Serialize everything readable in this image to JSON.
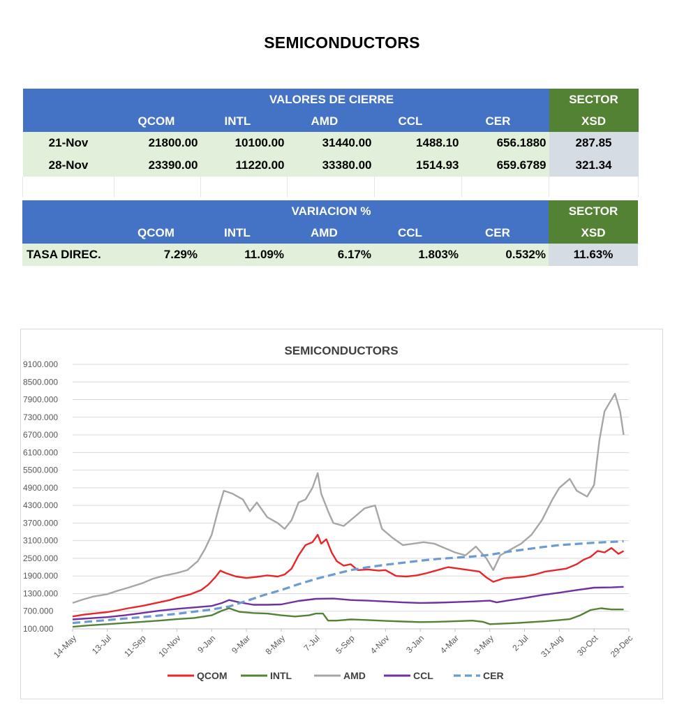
{
  "title": "SEMICONDUCTORS",
  "table_cierre": {
    "section_label": "VALORES DE CIERRE",
    "sector_label": "SECTOR",
    "columns": [
      "QCOM",
      "INTL",
      "AMD",
      "CCL",
      "CER",
      "XSD"
    ],
    "rows": [
      {
        "date": "21-Nov",
        "values": [
          "21800.00",
          "10100.00",
          "31440.00",
          "1488.10",
          "656.1880",
          "287.85"
        ]
      },
      {
        "date": "28-Nov",
        "values": [
          "23390.00",
          "11220.00",
          "33380.00",
          "1514.93",
          "659.6789",
          "321.34"
        ]
      }
    ]
  },
  "table_variacion": {
    "section_label": "VARIACION %",
    "sector_label": "SECTOR",
    "columns": [
      "QCOM",
      "INTL",
      "AMD",
      "CCL",
      "CER",
      "XSD"
    ],
    "row_label": "TASA DIREC.",
    "values": [
      "7.29%",
      "11.09%",
      "6.17%",
      "1.803%",
      "0.532%",
      "11.63%"
    ]
  },
  "chart_data": {
    "type": "line",
    "title": "SEMICONDUCTORS",
    "xlabel": "",
    "ylabel": "",
    "ylim": [
      100,
      9100
    ],
    "yticks": [
      "9100.000",
      "8500.000",
      "7900.000",
      "7300.000",
      "6700.000",
      "6100.000",
      "5500.000",
      "4900.000",
      "4300.000",
      "3700.000",
      "3100.000",
      "2500.000",
      "1900.000",
      "1300.000",
      "700.000",
      "100.000"
    ],
    "categories": [
      "14-May",
      "13-Jul",
      "11-Sep",
      "10-Nov",
      "9-Jan",
      "9-Mar",
      "8-May",
      "7-Jul",
      "5-Sep",
      "4-Nov",
      "3-Jan",
      "4-Mar",
      "3-May",
      "2-Jul",
      "31-Aug",
      "30-Oct",
      "29-Dec"
    ],
    "legend_position": "bottom",
    "series": [
      {
        "name": "QCOM",
        "color": "#e8262a",
        "style": "solid",
        "points": [
          [
            0,
            520
          ],
          [
            0.3,
            580
          ],
          [
            0.6,
            620
          ],
          [
            1,
            670
          ],
          [
            1.3,
            730
          ],
          [
            1.6,
            800
          ],
          [
            2,
            880
          ],
          [
            2.4,
            980
          ],
          [
            2.8,
            1080
          ],
          [
            3,
            1160
          ],
          [
            3.4,
            1280
          ],
          [
            3.7,
            1420
          ],
          [
            3.9,
            1600
          ],
          [
            4.1,
            1850
          ],
          [
            4.25,
            2080
          ],
          [
            4.4,
            2000
          ],
          [
            4.7,
            1880
          ],
          [
            5,
            1830
          ],
          [
            5.3,
            1870
          ],
          [
            5.6,
            1920
          ],
          [
            5.9,
            1880
          ],
          [
            6.1,
            1950
          ],
          [
            6.3,
            2150
          ],
          [
            6.5,
            2600
          ],
          [
            6.7,
            2950
          ],
          [
            6.9,
            3050
          ],
          [
            7.05,
            3300
          ],
          [
            7.15,
            3000
          ],
          [
            7.3,
            3150
          ],
          [
            7.45,
            2700
          ],
          [
            7.6,
            2400
          ],
          [
            7.8,
            2250
          ],
          [
            8,
            2300
          ],
          [
            8.2,
            2100
          ],
          [
            8.5,
            2120
          ],
          [
            8.8,
            2080
          ],
          [
            9,
            2100
          ],
          [
            9.3,
            1900
          ],
          [
            9.6,
            1880
          ],
          [
            9.9,
            1920
          ],
          [
            10.2,
            2000
          ],
          [
            10.5,
            2100
          ],
          [
            10.8,
            2200
          ],
          [
            11.1,
            2150
          ],
          [
            11.4,
            2100
          ],
          [
            11.7,
            2050
          ],
          [
            11.9,
            1850
          ],
          [
            12.1,
            1700
          ],
          [
            12.4,
            1820
          ],
          [
            12.7,
            1850
          ],
          [
            13,
            1880
          ],
          [
            13.3,
            1950
          ],
          [
            13.6,
            2050
          ],
          [
            13.9,
            2100
          ],
          [
            14.2,
            2150
          ],
          [
            14.5,
            2300
          ],
          [
            14.7,
            2450
          ],
          [
            14.9,
            2550
          ],
          [
            15.1,
            2750
          ],
          [
            15.3,
            2700
          ],
          [
            15.5,
            2850
          ],
          [
            15.7,
            2650
          ],
          [
            15.85,
            2750
          ]
        ]
      },
      {
        "name": "INTL",
        "color": "#548235",
        "style": "solid",
        "points": [
          [
            0,
            170
          ],
          [
            0.5,
            220
          ],
          [
            1,
            260
          ],
          [
            1.5,
            300
          ],
          [
            2,
            340
          ],
          [
            2.5,
            380
          ],
          [
            3,
            430
          ],
          [
            3.5,
            470
          ],
          [
            4,
            560
          ],
          [
            4.3,
            720
          ],
          [
            4.5,
            800
          ],
          [
            4.8,
            680
          ],
          [
            5.2,
            640
          ],
          [
            5.6,
            620
          ],
          [
            6,
            560
          ],
          [
            6.4,
            520
          ],
          [
            6.8,
            560
          ],
          [
            7,
            620
          ],
          [
            7.2,
            620
          ],
          [
            7.35,
            380
          ],
          [
            7.6,
            380
          ],
          [
            8,
            420
          ],
          [
            8.5,
            400
          ],
          [
            9,
            370
          ],
          [
            9.5,
            350
          ],
          [
            10,
            330
          ],
          [
            10.5,
            340
          ],
          [
            11,
            360
          ],
          [
            11.5,
            380
          ],
          [
            11.8,
            340
          ],
          [
            12,
            260
          ],
          [
            12.4,
            280
          ],
          [
            12.8,
            300
          ],
          [
            13.2,
            330
          ],
          [
            13.6,
            360
          ],
          [
            14,
            400
          ],
          [
            14.3,
            430
          ],
          [
            14.6,
            560
          ],
          [
            14.9,
            740
          ],
          [
            15.2,
            800
          ],
          [
            15.5,
            760
          ],
          [
            15.85,
            760
          ]
        ]
      },
      {
        "name": "AMD",
        "color": "#a6a6a6",
        "style": "solid",
        "points": [
          [
            0,
            980
          ],
          [
            0.3,
            1100
          ],
          [
            0.6,
            1200
          ],
          [
            1,
            1280
          ],
          [
            1.3,
            1400
          ],
          [
            1.6,
            1500
          ],
          [
            2,
            1650
          ],
          [
            2.3,
            1800
          ],
          [
            2.6,
            1900
          ],
          [
            3,
            2000
          ],
          [
            3.3,
            2100
          ],
          [
            3.6,
            2400
          ],
          [
            3.8,
            2800
          ],
          [
            4,
            3300
          ],
          [
            4.2,
            4200
          ],
          [
            4.35,
            4800
          ],
          [
            4.6,
            4700
          ],
          [
            4.9,
            4500
          ],
          [
            5.1,
            4100
          ],
          [
            5.3,
            4400
          ],
          [
            5.6,
            3900
          ],
          [
            5.9,
            3700
          ],
          [
            6.1,
            3500
          ],
          [
            6.3,
            3800
          ],
          [
            6.5,
            4400
          ],
          [
            6.7,
            4500
          ],
          [
            6.9,
            4900
          ],
          [
            7.05,
            5400
          ],
          [
            7.15,
            4700
          ],
          [
            7.35,
            4100
          ],
          [
            7.5,
            3700
          ],
          [
            7.8,
            3600
          ],
          [
            8.1,
            3900
          ],
          [
            8.4,
            4200
          ],
          [
            8.7,
            4300
          ],
          [
            8.9,
            3500
          ],
          [
            9.2,
            3200
          ],
          [
            9.5,
            2950
          ],
          [
            9.8,
            3000
          ],
          [
            10.1,
            3050
          ],
          [
            10.4,
            3000
          ],
          [
            10.7,
            2850
          ],
          [
            11,
            2700
          ],
          [
            11.3,
            2600
          ],
          [
            11.6,
            2900
          ],
          [
            11.9,
            2500
          ],
          [
            12.1,
            2100
          ],
          [
            12.3,
            2600
          ],
          [
            12.6,
            2800
          ],
          [
            12.9,
            3000
          ],
          [
            13.2,
            3300
          ],
          [
            13.5,
            3800
          ],
          [
            13.8,
            4500
          ],
          [
            14,
            4900
          ],
          [
            14.3,
            5200
          ],
          [
            14.5,
            4800
          ],
          [
            14.8,
            4600
          ],
          [
            15,
            5000
          ],
          [
            15.15,
            6500
          ],
          [
            15.3,
            7500
          ],
          [
            15.45,
            7800
          ],
          [
            15.6,
            8100
          ],
          [
            15.75,
            7500
          ],
          [
            15.85,
            6700
          ]
        ]
      },
      {
        "name": "CCL",
        "color": "#7030a0",
        "style": "solid",
        "points": [
          [
            0,
            420
          ],
          [
            0.5,
            460
          ],
          [
            1,
            500
          ],
          [
            1.5,
            560
          ],
          [
            2,
            640
          ],
          [
            2.5,
            720
          ],
          [
            3,
            780
          ],
          [
            3.5,
            830
          ],
          [
            4,
            880
          ],
          [
            4.3,
            980
          ],
          [
            4.5,
            1080
          ],
          [
            4.8,
            1000
          ],
          [
            5.2,
            920
          ],
          [
            5.6,
            920
          ],
          [
            6,
            930
          ],
          [
            6.5,
            1050
          ],
          [
            7,
            1120
          ],
          [
            7.5,
            1130
          ],
          [
            8,
            1080
          ],
          [
            8.5,
            1060
          ],
          [
            9,
            1030
          ],
          [
            9.5,
            1000
          ],
          [
            10,
            980
          ],
          [
            10.5,
            990
          ],
          [
            11,
            1010
          ],
          [
            11.5,
            1030
          ],
          [
            12,
            1060
          ],
          [
            12.2,
            1000
          ],
          [
            12.5,
            1060
          ],
          [
            13,
            1150
          ],
          [
            13.5,
            1250
          ],
          [
            14,
            1330
          ],
          [
            14.5,
            1420
          ],
          [
            15,
            1500
          ],
          [
            15.5,
            1510
          ],
          [
            15.85,
            1530
          ]
        ]
      },
      {
        "name": "CER",
        "color": "#6b9bd1",
        "style": "dashed",
        "points": [
          [
            0,
            300
          ],
          [
            1,
            400
          ],
          [
            2,
            500
          ],
          [
            3,
            610
          ],
          [
            4,
            760
          ],
          [
            4.5,
            860
          ],
          [
            5,
            1050
          ],
          [
            5.5,
            1250
          ],
          [
            6,
            1420
          ],
          [
            6.5,
            1620
          ],
          [
            7,
            1800
          ],
          [
            7.5,
            1950
          ],
          [
            8,
            2100
          ],
          [
            8.5,
            2200
          ],
          [
            9,
            2280
          ],
          [
            9.5,
            2350
          ],
          [
            10,
            2420
          ],
          [
            10.5,
            2480
          ],
          [
            11,
            2520
          ],
          [
            11.5,
            2560
          ],
          [
            12,
            2620
          ],
          [
            12.5,
            2720
          ],
          [
            13,
            2800
          ],
          [
            13.5,
            2880
          ],
          [
            14,
            2950
          ],
          [
            14.5,
            2990
          ],
          [
            15,
            3030
          ],
          [
            15.5,
            3060
          ],
          [
            15.85,
            3080
          ]
        ]
      }
    ]
  }
}
